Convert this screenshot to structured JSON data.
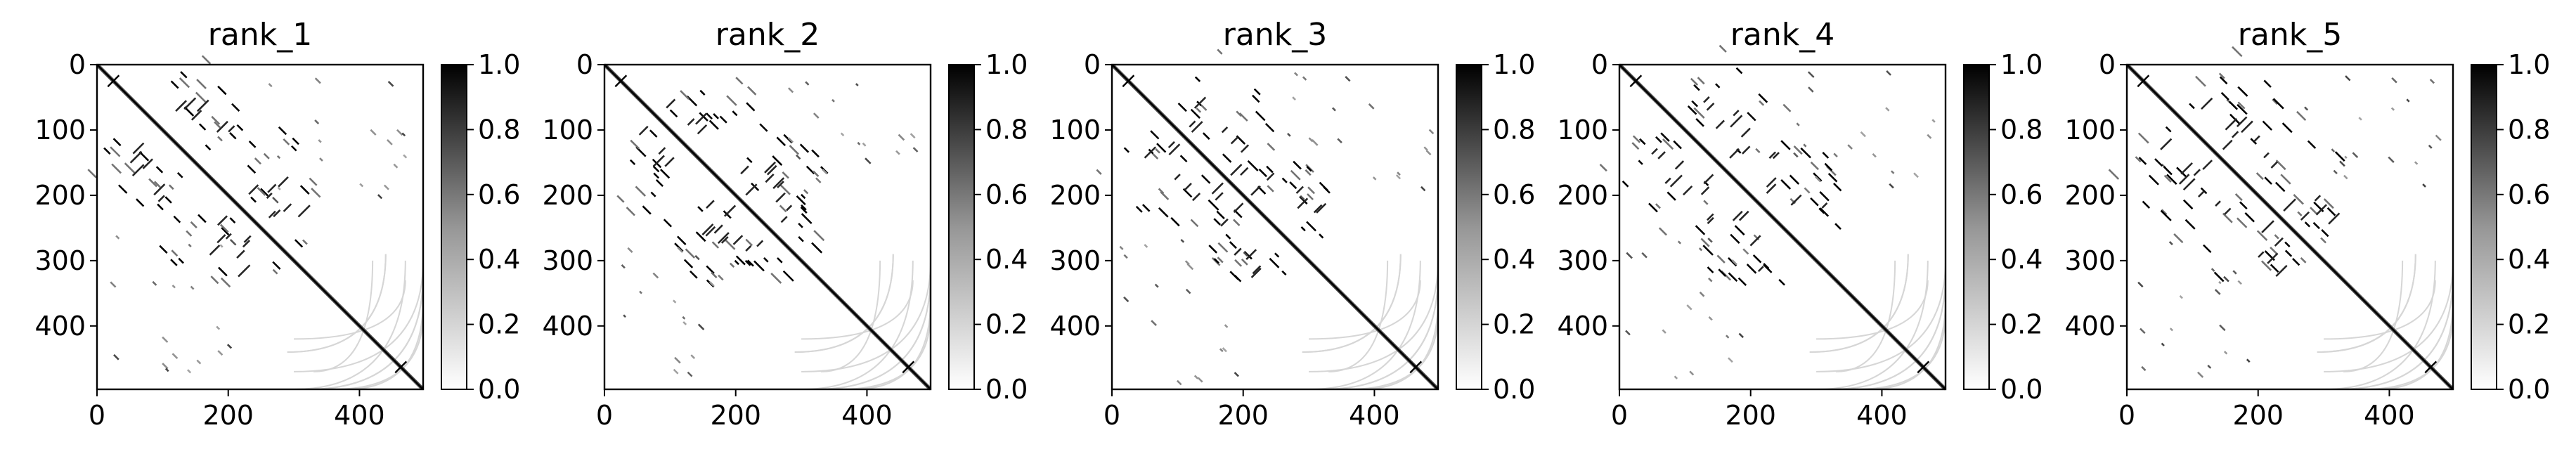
{
  "chart_data": [
    {
      "type": "heatmap",
      "title": "rank_1",
      "xlim": [
        0,
        497
      ],
      "ylim": [
        497,
        0
      ],
      "x_ticks": [
        0,
        200,
        400
      ],
      "y_ticks": [
        0,
        100,
        200,
        300,
        400
      ],
      "colorbar": {
        "range": [
          0,
          1
        ],
        "ticks": [
          0.0,
          0.2,
          0.4,
          0.6,
          0.8,
          1.0
        ],
        "tick_labels": [
          "0.0",
          "0.2",
          "0.4",
          "0.6",
          "0.8",
          "1.0"
        ],
        "colormap": "Greys"
      },
      "markers": [
        [
          25,
          25
        ],
        [
          463,
          463
        ]
      ],
      "structure": {
        "diagonal": true,
        "diagonal_value": 1.0,
        "contacts": "sparse off-diagonal contact map, high values clustered in 0-300 region, faint arcs in 300-497 region"
      }
    },
    {
      "type": "heatmap",
      "title": "rank_2",
      "xlim": [
        0,
        497
      ],
      "ylim": [
        497,
        0
      ],
      "x_ticks": [
        0,
        200,
        400
      ],
      "y_ticks": [
        0,
        100,
        200,
        300,
        400
      ],
      "colorbar": {
        "range": [
          0,
          1
        ],
        "ticks": [
          0.0,
          0.2,
          0.4,
          0.6,
          0.8,
          1.0
        ],
        "tick_labels": [
          "0.0",
          "0.2",
          "0.4",
          "0.6",
          "0.8",
          "1.0"
        ],
        "colormap": "Greys"
      },
      "markers": [
        [
          25,
          25
        ],
        [
          463,
          463
        ]
      ],
      "structure": {
        "diagonal": true,
        "diagonal_value": 1.0,
        "contacts": "sparse off-diagonal contact map, high values clustered in 0-300 region, faint arcs in 300-497 region"
      }
    },
    {
      "type": "heatmap",
      "title": "rank_3",
      "xlim": [
        0,
        497
      ],
      "ylim": [
        497,
        0
      ],
      "x_ticks": [
        0,
        200,
        400
      ],
      "y_ticks": [
        0,
        100,
        200,
        300,
        400
      ],
      "colorbar": {
        "range": [
          0,
          1
        ],
        "ticks": [
          0.0,
          0.2,
          0.4,
          0.6,
          0.8,
          1.0
        ],
        "tick_labels": [
          "0.0",
          "0.2",
          "0.4",
          "0.6",
          "0.8",
          "1.0"
        ],
        "colormap": "Greys"
      },
      "markers": [
        [
          25,
          25
        ],
        [
          463,
          463
        ]
      ],
      "structure": {
        "diagonal": true,
        "diagonal_value": 1.0,
        "contacts": "sparse off-diagonal contact map, high values clustered in 0-300 region, faint arcs in 300-497 region"
      }
    },
    {
      "type": "heatmap",
      "title": "rank_4",
      "xlim": [
        0,
        497
      ],
      "ylim": [
        497,
        0
      ],
      "x_ticks": [
        0,
        200,
        400
      ],
      "y_ticks": [
        0,
        100,
        200,
        300,
        400
      ],
      "colorbar": {
        "range": [
          0,
          1
        ],
        "ticks": [
          0.0,
          0.2,
          0.4,
          0.6,
          0.8,
          1.0
        ],
        "tick_labels": [
          "0.0",
          "0.2",
          "0.4",
          "0.6",
          "0.8",
          "1.0"
        ],
        "colormap": "Greys"
      },
      "markers": [
        [
          25,
          25
        ],
        [
          463,
          463
        ]
      ],
      "structure": {
        "diagonal": true,
        "diagonal_value": 1.0,
        "contacts": "sparse off-diagonal contact map, high values clustered in 0-300 region, faint arcs in 300-497 region"
      }
    },
    {
      "type": "heatmap",
      "title": "rank_5",
      "xlim": [
        0,
        497
      ],
      "ylim": [
        497,
        0
      ],
      "x_ticks": [
        0,
        200,
        400
      ],
      "y_ticks": [
        0,
        100,
        200,
        300,
        400
      ],
      "colorbar": {
        "range": [
          0,
          1
        ],
        "ticks": [
          0.0,
          0.2,
          0.4,
          0.6,
          0.8,
          1.0
        ],
        "tick_labels": [
          "0.0",
          "0.2",
          "0.4",
          "0.6",
          "0.8",
          "1.0"
        ],
        "colormap": "Greys"
      },
      "markers": [
        [
          25,
          25
        ],
        [
          463,
          463
        ]
      ],
      "structure": {
        "diagonal": true,
        "diagonal_value": 1.0,
        "contacts": "sparse off-diagonal contact map, high values clustered in 0-300 region, faint arcs in 300-497 region"
      }
    }
  ],
  "colors": {
    "high": "#000000",
    "low": "#ffffff",
    "axis": "#000000"
  }
}
